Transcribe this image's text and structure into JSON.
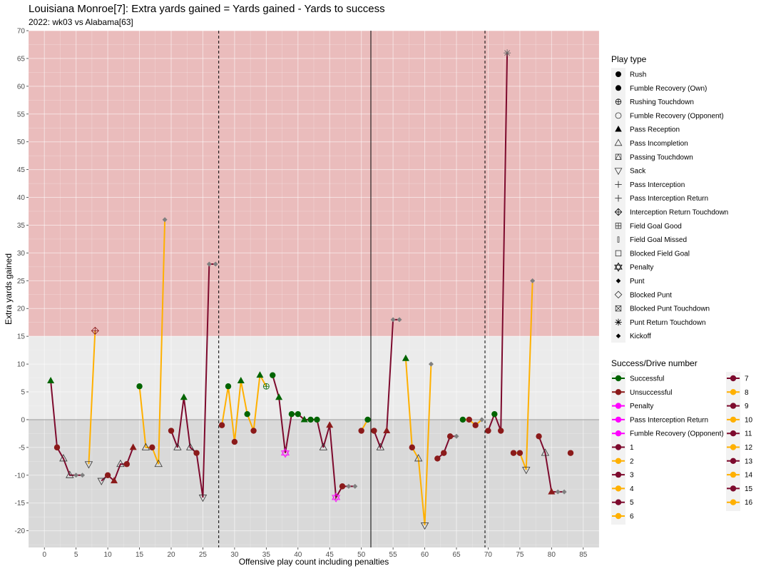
{
  "title": "Louisiana Monroe[7]: Extra yards gained = Yards gained - Yards to success",
  "subtitle": "2022: wk03 vs Alabama[63]",
  "chart_data": {
    "type": "scatter",
    "xlabel": "Offensive play count including penalties",
    "ylabel": "Extra yards gained",
    "xlim": [
      -2.5,
      87.5
    ],
    "ylim": [
      -23,
      70
    ],
    "x_ticks": [
      0,
      5,
      10,
      15,
      20,
      25,
      30,
      35,
      40,
      45,
      50,
      55,
      60,
      65,
      70,
      75,
      80,
      85
    ],
    "y_ticks": [
      -20,
      -15,
      -10,
      -5,
      0,
      5,
      10,
      15,
      20,
      25,
      30,
      35,
      40,
      45,
      50,
      55,
      60,
      65,
      70
    ],
    "bands": [
      {
        "from": 15,
        "to": 70,
        "color": "#eabcbc"
      },
      {
        "from": 0,
        "to": 15,
        "color": "#ebebeb"
      },
      {
        "from": -23,
        "to": 0,
        "color": "#d9d9d9"
      }
    ],
    "vlines": [
      {
        "x": 27.5,
        "style": "dashed"
      },
      {
        "x": 51.5,
        "style": "solid"
      },
      {
        "x": 69.5,
        "style": "dashed"
      }
    ],
    "colors": {
      "successful": "#006400",
      "unsuccessful": "#8b1a1a",
      "penalty": "#ff00ff",
      "odd_drive": "#7d0a2d",
      "even_drive": "#ffb000",
      "grey": "#808080"
    },
    "drives": [
      {
        "drive": 1,
        "points": [
          [
            1,
            7
          ],
          [
            2,
            -5
          ],
          [
            3,
            -7
          ],
          [
            4,
            -10
          ],
          [
            5,
            -10
          ],
          [
            6,
            -10
          ]
        ]
      },
      {
        "drive": 2,
        "points": [
          [
            7,
            -8
          ],
          [
            8,
            16
          ]
        ]
      },
      {
        "drive": 3,
        "points": [
          [
            9,
            -11
          ],
          [
            10,
            -10
          ],
          [
            11,
            -11
          ],
          [
            12,
            -8
          ],
          [
            13,
            -8
          ],
          [
            14,
            -5
          ]
        ]
      },
      {
        "drive": 4,
        "points": [
          [
            15,
            6
          ],
          [
            16,
            -5
          ],
          [
            17,
            -5
          ],
          [
            18,
            -8
          ],
          [
            19,
            36
          ]
        ]
      },
      {
        "drive": 5,
        "points": [
          [
            20,
            -2
          ],
          [
            21,
            -5
          ],
          [
            22,
            4
          ],
          [
            23,
            -5
          ],
          [
            24,
            -6
          ],
          [
            25,
            -14
          ],
          [
            26,
            28
          ],
          [
            27,
            28
          ]
        ]
      },
      {
        "drive": 6,
        "points": [
          [
            28,
            -1
          ],
          [
            29,
            6
          ],
          [
            30,
            -4
          ],
          [
            31,
            7
          ],
          [
            32,
            1
          ],
          [
            33,
            -2
          ],
          [
            34,
            8
          ],
          [
            35,
            6
          ]
        ]
      },
      {
        "drive": 7,
        "points": [
          [
            36,
            8
          ],
          [
            37,
            4
          ],
          [
            38,
            -6
          ],
          [
            39,
            1
          ],
          [
            40,
            1
          ],
          [
            41,
            0
          ],
          [
            42,
            0
          ],
          [
            43,
            0
          ],
          [
            44,
            -5
          ],
          [
            45,
            -1
          ],
          [
            46,
            -14
          ],
          [
            47,
            -12
          ],
          [
            48,
            -12
          ],
          [
            49,
            -12
          ]
        ]
      },
      {
        "drive": 8,
        "points": [
          [
            50,
            -2
          ],
          [
            51,
            0
          ]
        ]
      },
      {
        "drive": 9,
        "points": [
          [
            52,
            -2
          ],
          [
            53,
            -5
          ],
          [
            54,
            -2
          ],
          [
            55,
            18
          ],
          [
            56,
            18
          ]
        ]
      },
      {
        "drive": 10,
        "points": [
          [
            57,
            11
          ],
          [
            58,
            -5
          ],
          [
            59,
            -7
          ],
          [
            60,
            -19
          ],
          [
            61,
            10
          ]
        ]
      },
      {
        "drive": 11,
        "points": [
          [
            62,
            -7
          ],
          [
            63,
            -6
          ],
          [
            64,
            -3
          ],
          [
            65,
            -3
          ]
        ]
      },
      {
        "drive": 12,
        "points": [
          [
            66,
            0
          ],
          [
            67,
            0
          ],
          [
            68,
            -1
          ],
          [
            69,
            0
          ]
        ]
      },
      {
        "drive": 13,
        "points": [
          [
            70,
            -2
          ],
          [
            71,
            1
          ],
          [
            72,
            -2
          ],
          [
            73,
            66
          ]
        ]
      },
      {
        "drive": 14,
        "points": [
          [
            74,
            -6
          ],
          [
            75,
            -6
          ],
          [
            76,
            -9
          ],
          [
            77,
            25
          ]
        ]
      },
      {
        "drive": 15,
        "points": [
          [
            78,
            -3
          ],
          [
            79,
            -6
          ],
          [
            80,
            -13
          ],
          [
            81,
            -13
          ],
          [
            82,
            -13
          ]
        ]
      },
      {
        "drive": 16,
        "points": [
          [
            83,
            -6
          ]
        ]
      }
    ],
    "markers": [
      {
        "x": 1,
        "y": 7,
        "shape": "tri",
        "fill": "successful"
      },
      {
        "x": 2,
        "y": -5,
        "shape": "circle",
        "fill": "unsuccessful"
      },
      {
        "x": 3,
        "y": -7,
        "shape": "tri-open"
      },
      {
        "x": 4,
        "y": -10,
        "shape": "tri-open"
      },
      {
        "x": 5,
        "y": -10,
        "shape": "diamond",
        "fill": "grey"
      },
      {
        "x": 6,
        "y": -10,
        "shape": "diamond",
        "fill": "grey"
      },
      {
        "x": 7,
        "y": -8,
        "shape": "tri-down-open"
      },
      {
        "x": 8,
        "y": 16,
        "shape": "diamond-plus"
      },
      {
        "x": 9,
        "y": -11,
        "shape": "tri-down-open"
      },
      {
        "x": 10,
        "y": -10,
        "shape": "circle",
        "fill": "unsuccessful"
      },
      {
        "x": 11,
        "y": -11,
        "shape": "tri",
        "fill": "unsuccessful"
      },
      {
        "x": 12,
        "y": -8,
        "shape": "tri-open"
      },
      {
        "x": 13,
        "y": -8,
        "shape": "circle",
        "fill": "unsuccessful"
      },
      {
        "x": 14,
        "y": -5,
        "shape": "tri",
        "fill": "unsuccessful"
      },
      {
        "x": 15,
        "y": 6,
        "shape": "circle",
        "fill": "successful"
      },
      {
        "x": 16,
        "y": -5,
        "shape": "tri-open"
      },
      {
        "x": 17,
        "y": -5,
        "shape": "circle",
        "fill": "unsuccessful"
      },
      {
        "x": 18,
        "y": -8,
        "shape": "tri-open"
      },
      {
        "x": 19,
        "y": 36,
        "shape": "diamond",
        "fill": "grey"
      },
      {
        "x": 20,
        "y": -2,
        "shape": "circle",
        "fill": "unsuccessful"
      },
      {
        "x": 21,
        "y": -5,
        "shape": "tri-open"
      },
      {
        "x": 22,
        "y": 4,
        "shape": "tri",
        "fill": "successful"
      },
      {
        "x": 23,
        "y": -5,
        "shape": "tri-open"
      },
      {
        "x": 24,
        "y": -6,
        "shape": "circle",
        "fill": "unsuccessful"
      },
      {
        "x": 25,
        "y": -14,
        "shape": "tri-down-open"
      },
      {
        "x": 26,
        "y": 28,
        "shape": "diamond",
        "fill": "grey"
      },
      {
        "x": 27,
        "y": 28,
        "shape": "diamond",
        "fill": "grey"
      },
      {
        "x": 28,
        "y": -1,
        "shape": "circle",
        "fill": "unsuccessful"
      },
      {
        "x": 29,
        "y": 6,
        "shape": "circle",
        "fill": "successful"
      },
      {
        "x": 30,
        "y": -4,
        "shape": "circle",
        "fill": "unsuccessful"
      },
      {
        "x": 31,
        "y": 7,
        "shape": "tri",
        "fill": "successful"
      },
      {
        "x": 32,
        "y": 1,
        "shape": "circle",
        "fill": "successful"
      },
      {
        "x": 33,
        "y": -2,
        "shape": "circle",
        "fill": "unsuccessful"
      },
      {
        "x": 34,
        "y": 8,
        "shape": "tri",
        "fill": "successful"
      },
      {
        "x": 35,
        "y": 6,
        "shape": "circle-plus"
      },
      {
        "x": 36,
        "y": 8,
        "shape": "circle",
        "fill": "successful"
      },
      {
        "x": 37,
        "y": 4,
        "shape": "tri",
        "fill": "successful"
      },
      {
        "x": 38,
        "y": -6,
        "shape": "star-david"
      },
      {
        "x": 39,
        "y": 1,
        "shape": "circle",
        "fill": "successful"
      },
      {
        "x": 40,
        "y": 1,
        "shape": "circle",
        "fill": "successful"
      },
      {
        "x": 41,
        "y": 0,
        "shape": "tri",
        "fill": "successful"
      },
      {
        "x": 42,
        "y": 0,
        "shape": "circle",
        "fill": "successful"
      },
      {
        "x": 43,
        "y": 0,
        "shape": "circle",
        "fill": "successful"
      },
      {
        "x": 44,
        "y": -5,
        "shape": "tri-open"
      },
      {
        "x": 45,
        "y": -1,
        "shape": "tri",
        "fill": "unsuccessful"
      },
      {
        "x": 46,
        "y": -14,
        "shape": "star-david"
      },
      {
        "x": 47,
        "y": -12,
        "shape": "circle",
        "fill": "unsuccessful"
      },
      {
        "x": 48,
        "y": -12,
        "shape": "diamond",
        "fill": "grey"
      },
      {
        "x": 49,
        "y": -12,
        "shape": "diamond",
        "fill": "grey"
      },
      {
        "x": 50,
        "y": -2,
        "shape": "circle",
        "fill": "unsuccessful"
      },
      {
        "x": 51,
        "y": 0,
        "shape": "circle",
        "fill": "successful"
      },
      {
        "x": 52,
        "y": -2,
        "shape": "circle",
        "fill": "unsuccessful"
      },
      {
        "x": 53,
        "y": -5,
        "shape": "tri-open"
      },
      {
        "x": 54,
        "y": -2,
        "shape": "tri",
        "fill": "unsuccessful"
      },
      {
        "x": 55,
        "y": 18,
        "shape": "diamond",
        "fill": "grey"
      },
      {
        "x": 56,
        "y": 18,
        "shape": "diamond",
        "fill": "grey"
      },
      {
        "x": 57,
        "y": 11,
        "shape": "tri",
        "fill": "successful"
      },
      {
        "x": 58,
        "y": -5,
        "shape": "circle",
        "fill": "unsuccessful"
      },
      {
        "x": 59,
        "y": -7,
        "shape": "tri-open"
      },
      {
        "x": 60,
        "y": -19,
        "shape": "tri-down-open"
      },
      {
        "x": 61,
        "y": 10,
        "shape": "diamond",
        "fill": "grey"
      },
      {
        "x": 62,
        "y": -7,
        "shape": "circle",
        "fill": "unsuccessful"
      },
      {
        "x": 63,
        "y": -6,
        "shape": "circle",
        "fill": "unsuccessful"
      },
      {
        "x": 64,
        "y": -3,
        "shape": "circle",
        "fill": "unsuccessful"
      },
      {
        "x": 65,
        "y": -3,
        "shape": "diamond",
        "fill": "grey"
      },
      {
        "x": 66,
        "y": 0,
        "shape": "circle",
        "fill": "successful"
      },
      {
        "x": 67,
        "y": 0,
        "shape": "circle",
        "fill": "unsuccessful"
      },
      {
        "x": 68,
        "y": -1,
        "shape": "circle",
        "fill": "unsuccessful"
      },
      {
        "x": 69,
        "y": 0,
        "shape": "diamond",
        "fill": "grey"
      },
      {
        "x": 70,
        "y": -2,
        "shape": "circle",
        "fill": "unsuccessful"
      },
      {
        "x": 71,
        "y": 1,
        "shape": "circle",
        "fill": "successful"
      },
      {
        "x": 72,
        "y": -2,
        "shape": "circle",
        "fill": "unsuccessful"
      },
      {
        "x": 73,
        "y": 66,
        "shape": "asterisk"
      },
      {
        "x": 74,
        "y": -6,
        "shape": "circle",
        "fill": "unsuccessful"
      },
      {
        "x": 75,
        "y": -6,
        "shape": "circle",
        "fill": "unsuccessful"
      },
      {
        "x": 76,
        "y": -9,
        "shape": "tri-down-open"
      },
      {
        "x": 77,
        "y": 25,
        "shape": "diamond",
        "fill": "grey"
      },
      {
        "x": 78,
        "y": -3,
        "shape": "circle",
        "fill": "unsuccessful"
      },
      {
        "x": 79,
        "y": -6,
        "shape": "tri-open"
      },
      {
        "x": 80,
        "y": -13,
        "shape": "tri",
        "fill": "unsuccessful"
      },
      {
        "x": 81,
        "y": -13,
        "shape": "diamond",
        "fill": "grey"
      },
      {
        "x": 82,
        "y": -13,
        "shape": "diamond",
        "fill": "grey"
      },
      {
        "x": 83,
        "y": -6,
        "shape": "circle",
        "fill": "unsuccessful"
      }
    ],
    "legend_play_type": {
      "title": "Play type",
      "items": [
        {
          "label": "Rush",
          "shape": "circle"
        },
        {
          "label": "Fumble Recovery (Own)",
          "shape": "circle"
        },
        {
          "label": "Rushing Touchdown",
          "shape": "circle-plus"
        },
        {
          "label": "Fumble Recovery (Opponent)",
          "shape": "circle-open"
        },
        {
          "label": "Pass Reception",
          "shape": "tri"
        },
        {
          "label": "Pass Incompletion",
          "shape": "tri-open"
        },
        {
          "label": "Passing Touchdown",
          "shape": "square-tri"
        },
        {
          "label": "Sack",
          "shape": "tri-down-open"
        },
        {
          "label": "Pass Interception",
          "shape": "plus"
        },
        {
          "label": "Pass Interception Return",
          "shape": "plus"
        },
        {
          "label": "Interception Return Touchdown",
          "shape": "diamond-plus"
        },
        {
          "label": "Field Goal Good",
          "shape": "square-plus"
        },
        {
          "label": "Field Goal Missed",
          "shape": "bar"
        },
        {
          "label": "Blocked Field Goal",
          "shape": "square-open"
        },
        {
          "label": "Penalty",
          "shape": "star-david"
        },
        {
          "label": "Punt",
          "shape": "diamond"
        },
        {
          "label": "Blocked Punt",
          "shape": "diamond-open"
        },
        {
          "label": "Blocked Punt Touchdown",
          "shape": "square-x"
        },
        {
          "label": "Punt Return Touchdown",
          "shape": "asterisk"
        },
        {
          "label": "Kickoff",
          "shape": "diamond"
        }
      ]
    },
    "legend_success": {
      "title": "Success/Drive number",
      "col1": [
        {
          "label": "Successful",
          "color": "#006400"
        },
        {
          "label": "Unsuccessful",
          "color": "#8b1a1a"
        },
        {
          "label": "Penalty",
          "color": "#ff00ff"
        },
        {
          "label": "Pass Interception Return",
          "color": "#ff00ff"
        },
        {
          "label": "Fumble Recovery (Opponent)",
          "color": "#ff00ff"
        },
        {
          "label": "1",
          "color": "#7d0a2d"
        },
        {
          "label": "2",
          "color": "#ffb000"
        },
        {
          "label": "3",
          "color": "#7d0a2d"
        },
        {
          "label": "4",
          "color": "#ffb000"
        },
        {
          "label": "5",
          "color": "#7d0a2d"
        },
        {
          "label": "6",
          "color": "#ffb000"
        }
      ],
      "col2": [
        {
          "label": "7",
          "color": "#7d0a2d"
        },
        {
          "label": "8",
          "color": "#ffb000"
        },
        {
          "label": "9",
          "color": "#7d0a2d"
        },
        {
          "label": "10",
          "color": "#ffb000"
        },
        {
          "label": "11",
          "color": "#7d0a2d"
        },
        {
          "label": "12",
          "color": "#ffb000"
        },
        {
          "label": "13",
          "color": "#7d0a2d"
        },
        {
          "label": "14",
          "color": "#ffb000"
        },
        {
          "label": "15",
          "color": "#7d0a2d"
        },
        {
          "label": "16",
          "color": "#ffb000"
        }
      ]
    }
  }
}
